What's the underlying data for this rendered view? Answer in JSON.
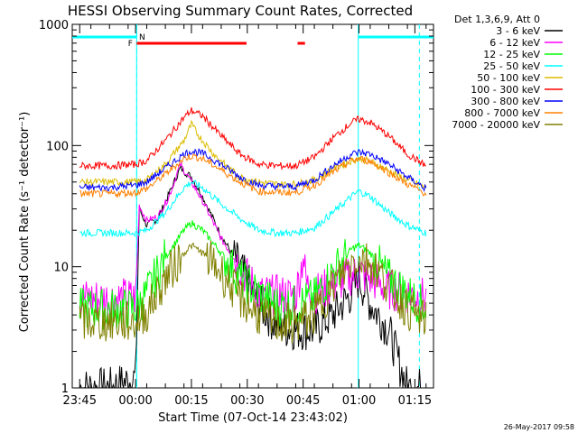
{
  "chart_data": {
    "type": "line",
    "title": "HESSI Observing Summary Count Rates, Corrected",
    "xlabel": "Start Time (07-Oct-14 23:43:02)",
    "ylabel": "Corrected Count Rate (s⁻¹ detector⁻¹)",
    "y_scale": "log",
    "ylim": [
      1,
      1000
    ],
    "xlim_minutes": [
      0,
      97
    ],
    "x_ticks": [
      {
        "label": "23:45",
        "t": 2
      },
      {
        "label": "00:00",
        "t": 17
      },
      {
        "label": "00:15",
        "t": 32
      },
      {
        "label": "00:30",
        "t": 47
      },
      {
        "label": "00:45",
        "t": 62
      },
      {
        "label": "01:00",
        "t": 77
      },
      {
        "label": "01:15",
        "t": 92
      }
    ],
    "y_ticks": [
      {
        "label": "1",
        "value": 1
      },
      {
        "label": "10",
        "value": 10
      },
      {
        "label": "100",
        "value": 100
      },
      {
        "label": "1000",
        "value": 1000
      }
    ],
    "legend_title": "Det 1,3,6,9, Att 0",
    "legend_placement": "right",
    "series": [
      {
        "name": "3 - 6 keV",
        "color": "#000000",
        "points": [
          [
            2,
            1
          ],
          [
            10,
            1
          ],
          [
            17,
            1.2
          ],
          [
            18,
            30
          ],
          [
            20,
            22
          ],
          [
            23,
            25
          ],
          [
            26,
            40
          ],
          [
            29,
            65
          ],
          [
            32,
            55
          ],
          [
            35,
            38
          ],
          [
            40,
            18
          ],
          [
            45,
            10
          ],
          [
            50,
            5
          ],
          [
            55,
            3.2
          ],
          [
            60,
            3
          ],
          [
            65,
            3
          ],
          [
            70,
            4
          ],
          [
            75,
            6
          ],
          [
            77,
            8
          ],
          [
            80,
            5
          ],
          [
            85,
            3
          ],
          [
            88,
            1.5
          ],
          [
            90,
            1
          ],
          [
            95,
            1
          ]
        ]
      },
      {
        "name": "6 - 12 keV",
        "color": "#ff00ff",
        "points": [
          [
            2,
            5.5
          ],
          [
            10,
            5.5
          ],
          [
            17,
            5.5
          ],
          [
            18,
            32
          ],
          [
            20,
            24
          ],
          [
            23,
            26
          ],
          [
            26,
            38
          ],
          [
            29,
            70
          ],
          [
            32,
            50
          ],
          [
            35,
            35
          ],
          [
            40,
            17
          ],
          [
            45,
            10
          ],
          [
            50,
            6
          ],
          [
            55,
            5.8
          ],
          [
            60,
            5.8
          ],
          [
            62,
            12
          ],
          [
            63,
            7
          ],
          [
            65,
            6
          ],
          [
            70,
            7
          ],
          [
            75,
            8.5
          ],
          [
            77,
            9
          ],
          [
            80,
            8
          ],
          [
            85,
            6.5
          ],
          [
            90,
            6
          ],
          [
            95,
            5.5
          ]
        ]
      },
      {
        "name": "12 - 25 keV",
        "color": "#00ff00",
        "points": [
          [
            2,
            4.5
          ],
          [
            10,
            4.5
          ],
          [
            17,
            4.5
          ],
          [
            20,
            6
          ],
          [
            25,
            12
          ],
          [
            30,
            20
          ],
          [
            32,
            23
          ],
          [
            35,
            20
          ],
          [
            40,
            13
          ],
          [
            45,
            8
          ],
          [
            50,
            6
          ],
          [
            55,
            4.8
          ],
          [
            60,
            4.8
          ],
          [
            65,
            5.5
          ],
          [
            70,
            9
          ],
          [
            75,
            14
          ],
          [
            77,
            15
          ],
          [
            80,
            13
          ],
          [
            85,
            8
          ],
          [
            90,
            6
          ],
          [
            95,
            4.5
          ]
        ]
      },
      {
        "name": "25 - 50 keV",
        "color": "#00ffff",
        "points": [
          [
            2,
            19
          ],
          [
            10,
            19
          ],
          [
            17,
            19
          ],
          [
            20,
            20
          ],
          [
            25,
            28
          ],
          [
            30,
            45
          ],
          [
            32,
            50
          ],
          [
            35,
            45
          ],
          [
            40,
            33
          ],
          [
            45,
            25
          ],
          [
            50,
            20
          ],
          [
            55,
            19
          ],
          [
            60,
            19
          ],
          [
            65,
            21
          ],
          [
            70,
            28
          ],
          [
            75,
            38
          ],
          [
            77,
            42
          ],
          [
            80,
            38
          ],
          [
            85,
            28
          ],
          [
            90,
            22
          ],
          [
            95,
            19
          ]
        ]
      },
      {
        "name": "50 - 100 keV",
        "color": "#ddbb00",
        "points": [
          [
            2,
            50
          ],
          [
            10,
            50
          ],
          [
            17,
            50
          ],
          [
            20,
            52
          ],
          [
            25,
            70
          ],
          [
            30,
            110
          ],
          [
            32,
            150
          ],
          [
            34,
            120
          ],
          [
            38,
            85
          ],
          [
            42,
            65
          ],
          [
            45,
            55
          ],
          [
            50,
            50
          ],
          [
            55,
            48
          ],
          [
            60,
            48
          ],
          [
            65,
            52
          ],
          [
            70,
            64
          ],
          [
            75,
            75
          ],
          [
            77,
            78
          ],
          [
            80,
            74
          ],
          [
            85,
            62
          ],
          [
            90,
            52
          ],
          [
            95,
            45
          ]
        ]
      },
      {
        "name": "100 - 300 keV",
        "color": "#ff0000",
        "points": [
          [
            2,
            68
          ],
          [
            10,
            68
          ],
          [
            17,
            70
          ],
          [
            20,
            75
          ],
          [
            25,
            110
          ],
          [
            30,
            170
          ],
          [
            32,
            195
          ],
          [
            35,
            175
          ],
          [
            40,
            120
          ],
          [
            45,
            85
          ],
          [
            50,
            70
          ],
          [
            55,
            68
          ],
          [
            60,
            68
          ],
          [
            65,
            80
          ],
          [
            70,
            115
          ],
          [
            75,
            155
          ],
          [
            77,
            165
          ],
          [
            80,
            155
          ],
          [
            85,
            120
          ],
          [
            90,
            85
          ],
          [
            95,
            68
          ]
        ]
      },
      {
        "name": "300 - 800 keV",
        "color": "#0000ff",
        "points": [
          [
            2,
            45
          ],
          [
            10,
            45
          ],
          [
            17,
            47
          ],
          [
            20,
            50
          ],
          [
            25,
            65
          ],
          [
            30,
            85
          ],
          [
            32,
            90
          ],
          [
            35,
            86
          ],
          [
            40,
            70
          ],
          [
            45,
            55
          ],
          [
            50,
            47
          ],
          [
            55,
            46
          ],
          [
            60,
            46
          ],
          [
            65,
            52
          ],
          [
            70,
            68
          ],
          [
            75,
            85
          ],
          [
            77,
            88
          ],
          [
            80,
            85
          ],
          [
            85,
            70
          ],
          [
            90,
            55
          ],
          [
            95,
            44
          ]
        ]
      },
      {
        "name": "800 - 7000 keV",
        "color": "#ff8000",
        "points": [
          [
            2,
            40
          ],
          [
            10,
            40
          ],
          [
            17,
            41
          ],
          [
            20,
            44
          ],
          [
            25,
            58
          ],
          [
            30,
            78
          ],
          [
            32,
            82
          ],
          [
            35,
            78
          ],
          [
            40,
            63
          ],
          [
            45,
            50
          ],
          [
            50,
            42
          ],
          [
            55,
            41
          ],
          [
            60,
            41
          ],
          [
            65,
            47
          ],
          [
            70,
            60
          ],
          [
            75,
            75
          ],
          [
            77,
            78
          ],
          [
            80,
            74
          ],
          [
            85,
            60
          ],
          [
            90,
            48
          ],
          [
            95,
            40
          ]
        ]
      },
      {
        "name": "7000 - 20000 keV",
        "color": "#808000",
        "points": [
          [
            2,
            3.5
          ],
          [
            10,
            3.5
          ],
          [
            17,
            3.5
          ],
          [
            20,
            4.2
          ],
          [
            25,
            8
          ],
          [
            30,
            13
          ],
          [
            32,
            15
          ],
          [
            35,
            13
          ],
          [
            40,
            9
          ],
          [
            45,
            5.5
          ],
          [
            50,
            4
          ],
          [
            55,
            3.4
          ],
          [
            60,
            3.4
          ],
          [
            65,
            4
          ],
          [
            70,
            7
          ],
          [
            75,
            11
          ],
          [
            77,
            12
          ],
          [
            80,
            11
          ],
          [
            85,
            7
          ],
          [
            90,
            4.5
          ],
          [
            95,
            3.5
          ]
        ]
      }
    ],
    "vertical_lines": [
      17.3,
      76.8
    ],
    "dashed_vertical_lines": [
      17.3,
      93.2
    ],
    "flags": [
      {
        "label": "N",
        "color": "#00ffff",
        "spans": [
          [
            0,
            17.3
          ],
          [
            76.8,
            97
          ]
        ]
      },
      {
        "label": "F",
        "color": "#ff0000",
        "spans": [
          [
            17.3,
            46.8
          ],
          [
            60.5,
            62.5
          ]
        ]
      }
    ],
    "grid": false
  },
  "footer_timestamp": "26-May-2017 09:58"
}
